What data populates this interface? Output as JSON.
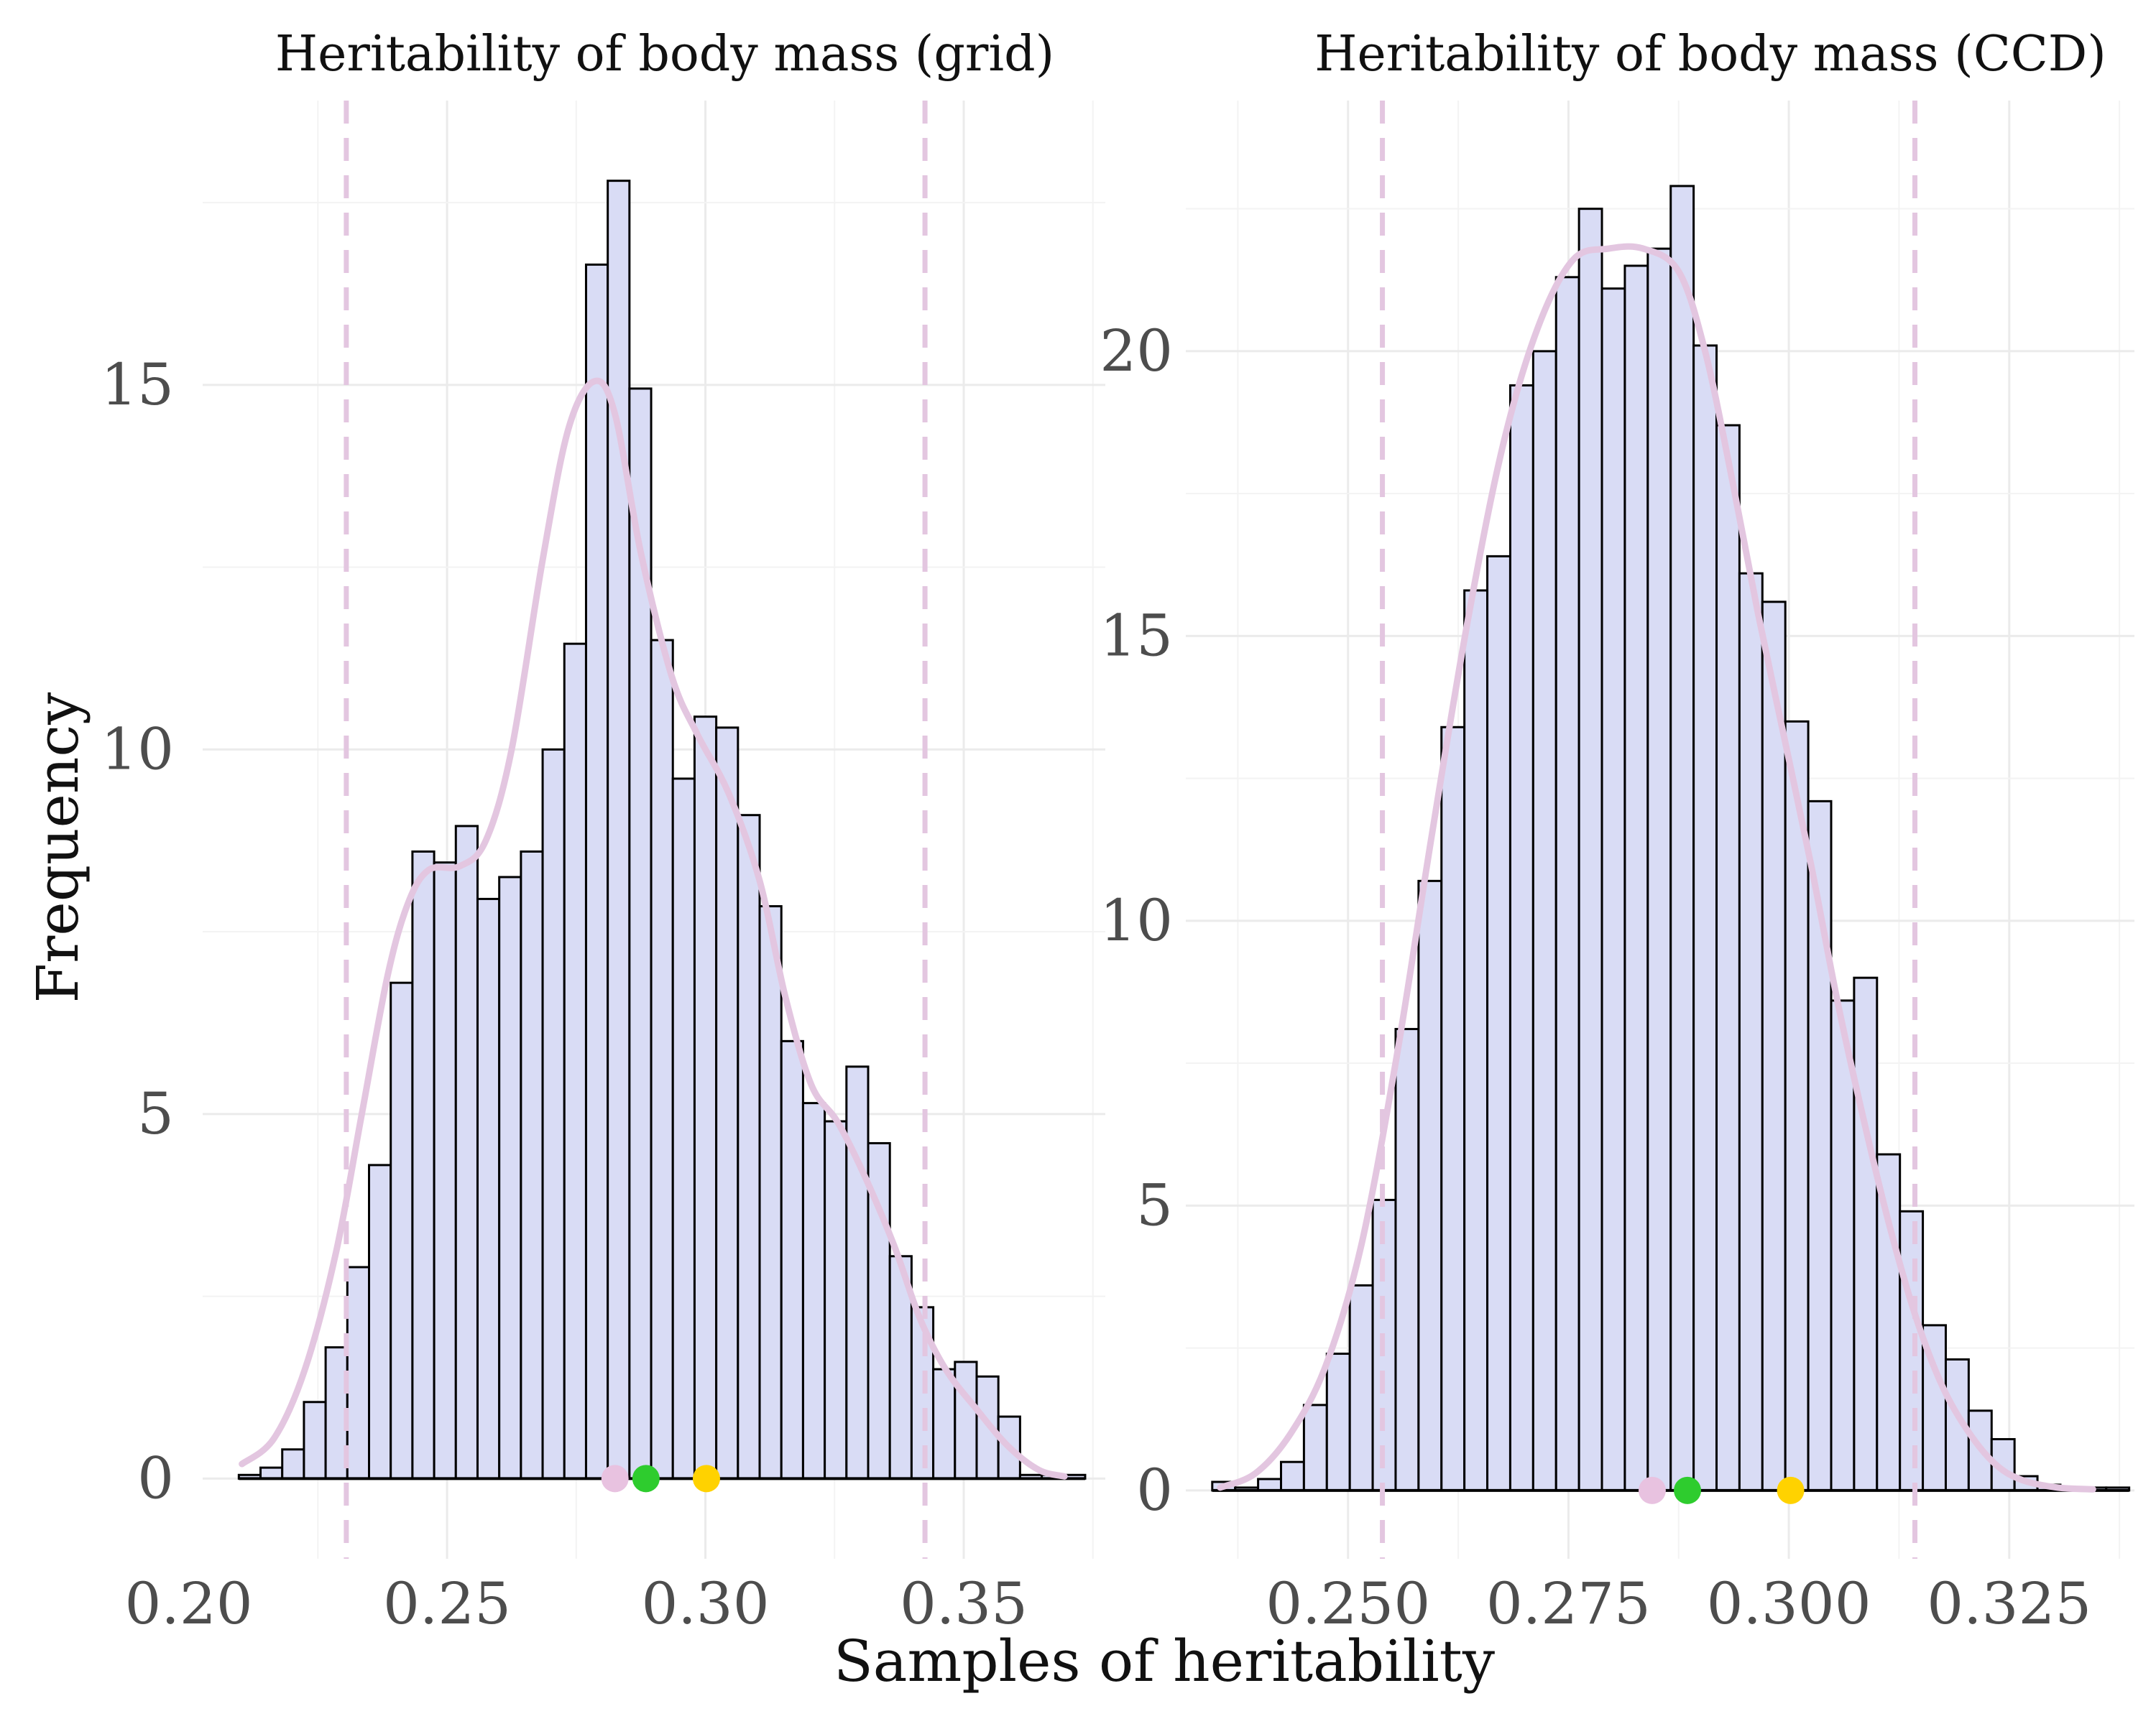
{
  "xlabel": "Samples of heritability",
  "ylabel": "Frequency",
  "chart_data": [
    {
      "type": "bar",
      "title": "Heritability of body mass (grid)",
      "xlim": [
        0.2027,
        0.3774
      ],
      "ylim": [
        -1.1,
        18.9
      ],
      "xticks": [
        0.2,
        0.25,
        0.3,
        0.35
      ],
      "xtick_labels": [
        "0.20",
        "0.25",
        "0.30",
        "0.35"
      ],
      "yticks": [
        0,
        5,
        10,
        15
      ],
      "ytick_labels": [
        "0",
        "5",
        "10",
        "15"
      ],
      "bin_width": 0.0042,
      "bins_x": [
        0.2097,
        0.2139,
        0.2181,
        0.2223,
        0.2265,
        0.2307,
        0.2349,
        0.2391,
        0.2433,
        0.2475,
        0.2517,
        0.2559,
        0.2601,
        0.2643,
        0.2685,
        0.2727,
        0.2769,
        0.2811,
        0.2853,
        0.2895,
        0.2937,
        0.2979,
        0.3021,
        0.3063,
        0.3105,
        0.3147,
        0.3189,
        0.3231,
        0.3273,
        0.3315,
        0.3357,
        0.3399,
        0.3441,
        0.3483,
        0.3525,
        0.3567,
        0.3609,
        0.3651,
        0.3693
      ],
      "values": [
        0.05,
        0.15,
        0.4,
        1.05,
        1.8,
        2.9,
        4.3,
        6.8,
        8.6,
        8.45,
        8.95,
        7.95,
        8.25,
        8.6,
        10.0,
        11.45,
        16.65,
        17.8,
        14.95,
        11.5,
        9.6,
        10.45,
        10.3,
        9.1,
        7.85,
        6.0,
        5.15,
        4.9,
        5.65,
        4.6,
        3.05,
        2.35,
        1.5,
        1.6,
        1.4,
        0.85,
        0.05,
        0.05,
        0.05
      ],
      "density": [
        [
          0.2103,
          0.2
        ],
        [
          0.2165,
          0.55
        ],
        [
          0.2225,
          1.5
        ],
        [
          0.2285,
          3.1
        ],
        [
          0.2335,
          5.0
        ],
        [
          0.2385,
          6.9
        ],
        [
          0.2425,
          7.9
        ],
        [
          0.2465,
          8.35
        ],
        [
          0.2525,
          8.4
        ],
        [
          0.2575,
          8.75
        ],
        [
          0.2625,
          10.0
        ],
        [
          0.2685,
          12.6
        ],
        [
          0.2735,
          14.4
        ],
        [
          0.2785,
          15.05
        ],
        [
          0.2825,
          14.6
        ],
        [
          0.2875,
          12.7
        ],
        [
          0.2935,
          11.0
        ],
        [
          0.2985,
          10.2
        ],
        [
          0.3045,
          9.4
        ],
        [
          0.3105,
          8.2
        ],
        [
          0.3155,
          6.6
        ],
        [
          0.3205,
          5.4
        ],
        [
          0.3255,
          4.9
        ],
        [
          0.3305,
          4.2
        ],
        [
          0.3365,
          3.2
        ],
        [
          0.3415,
          2.2
        ],
        [
          0.3465,
          1.5
        ],
        [
          0.3525,
          0.95
        ],
        [
          0.3585,
          0.45
        ],
        [
          0.3645,
          0.12
        ],
        [
          0.3695,
          0.03
        ]
      ],
      "dashed_lines_x": [
        0.2305,
        0.3425
      ],
      "points": [
        {
          "x": 0.2825,
          "color": "#e8c2e0"
        },
        {
          "x": 0.2885,
          "color": "#2ecc2e"
        },
        {
          "x": 0.3002,
          "color": "#ffd200"
        }
      ],
      "colors": {
        "bar_fill": "#d9dcf5",
        "bar_stroke": "#000000",
        "density": "#e3c6e0",
        "dashed": "#e3c6e0"
      }
    },
    {
      "type": "bar",
      "title": "Heritability of body mass (CCD)",
      "xlim": [
        0.2316,
        0.3392
      ],
      "ylim": [
        -1.2,
        24.4
      ],
      "xticks": [
        0.25,
        0.275,
        0.3,
        0.325
      ],
      "xtick_labels": [
        "0.250",
        "0.275",
        "0.300",
        "0.325"
      ],
      "yticks": [
        0,
        5,
        10,
        15,
        20
      ],
      "ytick_labels": [
        "0",
        "5",
        "10",
        "15",
        "20"
      ],
      "bin_width": 0.0026,
      "bins_x": [
        0.2346,
        0.2372,
        0.2398,
        0.2424,
        0.245,
        0.2476,
        0.2502,
        0.2528,
        0.2554,
        0.258,
        0.2606,
        0.2632,
        0.2658,
        0.2684,
        0.271,
        0.2736,
        0.2762,
        0.2788,
        0.2814,
        0.284,
        0.2866,
        0.2892,
        0.2918,
        0.2944,
        0.297,
        0.2996,
        0.3022,
        0.3048,
        0.3074,
        0.31,
        0.3126,
        0.3152,
        0.3178,
        0.3204,
        0.323,
        0.3256,
        0.3282,
        0.3308,
        0.3334,
        0.336
      ],
      "values": [
        0.15,
        0.05,
        0.2,
        0.5,
        1.5,
        2.4,
        3.6,
        5.1,
        8.1,
        10.7,
        13.4,
        15.8,
        16.4,
        19.4,
        20.0,
        21.3,
        22.5,
        21.1,
        21.5,
        21.8,
        22.9,
        20.1,
        18.7,
        16.1,
        15.6,
        13.5,
        12.1,
        8.6,
        9.0,
        5.9,
        4.9,
        2.9,
        2.3,
        1.4,
        0.9,
        0.25,
        0.1,
        0.05,
        0.05,
        0.05
      ],
      "density": [
        [
          0.2355,
          0.05
        ],
        [
          0.2395,
          0.3
        ],
        [
          0.2435,
          1.0
        ],
        [
          0.2475,
          2.2
        ],
        [
          0.2515,
          4.3
        ],
        [
          0.2555,
          7.6
        ],
        [
          0.2595,
          11.5
        ],
        [
          0.2635,
          15.2
        ],
        [
          0.2675,
          18.3
        ],
        [
          0.2715,
          20.4
        ],
        [
          0.2755,
          21.6
        ],
        [
          0.2795,
          21.8
        ],
        [
          0.2835,
          21.8
        ],
        [
          0.2875,
          21.4
        ],
        [
          0.2905,
          20.0
        ],
        [
          0.2935,
          17.8
        ],
        [
          0.2965,
          15.4
        ],
        [
          0.2995,
          13.2
        ],
        [
          0.3025,
          11.0
        ],
        [
          0.3055,
          8.6
        ],
        [
          0.3085,
          6.5
        ],
        [
          0.3115,
          4.6
        ],
        [
          0.3145,
          3.0
        ],
        [
          0.3175,
          1.8
        ],
        [
          0.3205,
          1.0
        ],
        [
          0.3235,
          0.45
        ],
        [
          0.3265,
          0.18
        ],
        [
          0.3305,
          0.05
        ],
        [
          0.3345,
          0.02
        ]
      ],
      "dashed_lines_x": [
        0.2539,
        0.3143
      ],
      "points": [
        {
          "x": 0.2845,
          "color": "#e8c2e0"
        },
        {
          "x": 0.2885,
          "color": "#2ecc2e"
        },
        {
          "x": 0.3002,
          "color": "#ffd200"
        }
      ],
      "colors": {
        "bar_fill": "#d9dcf5",
        "bar_stroke": "#000000",
        "density": "#e3c6e0",
        "dashed": "#e3c6e0"
      }
    }
  ]
}
